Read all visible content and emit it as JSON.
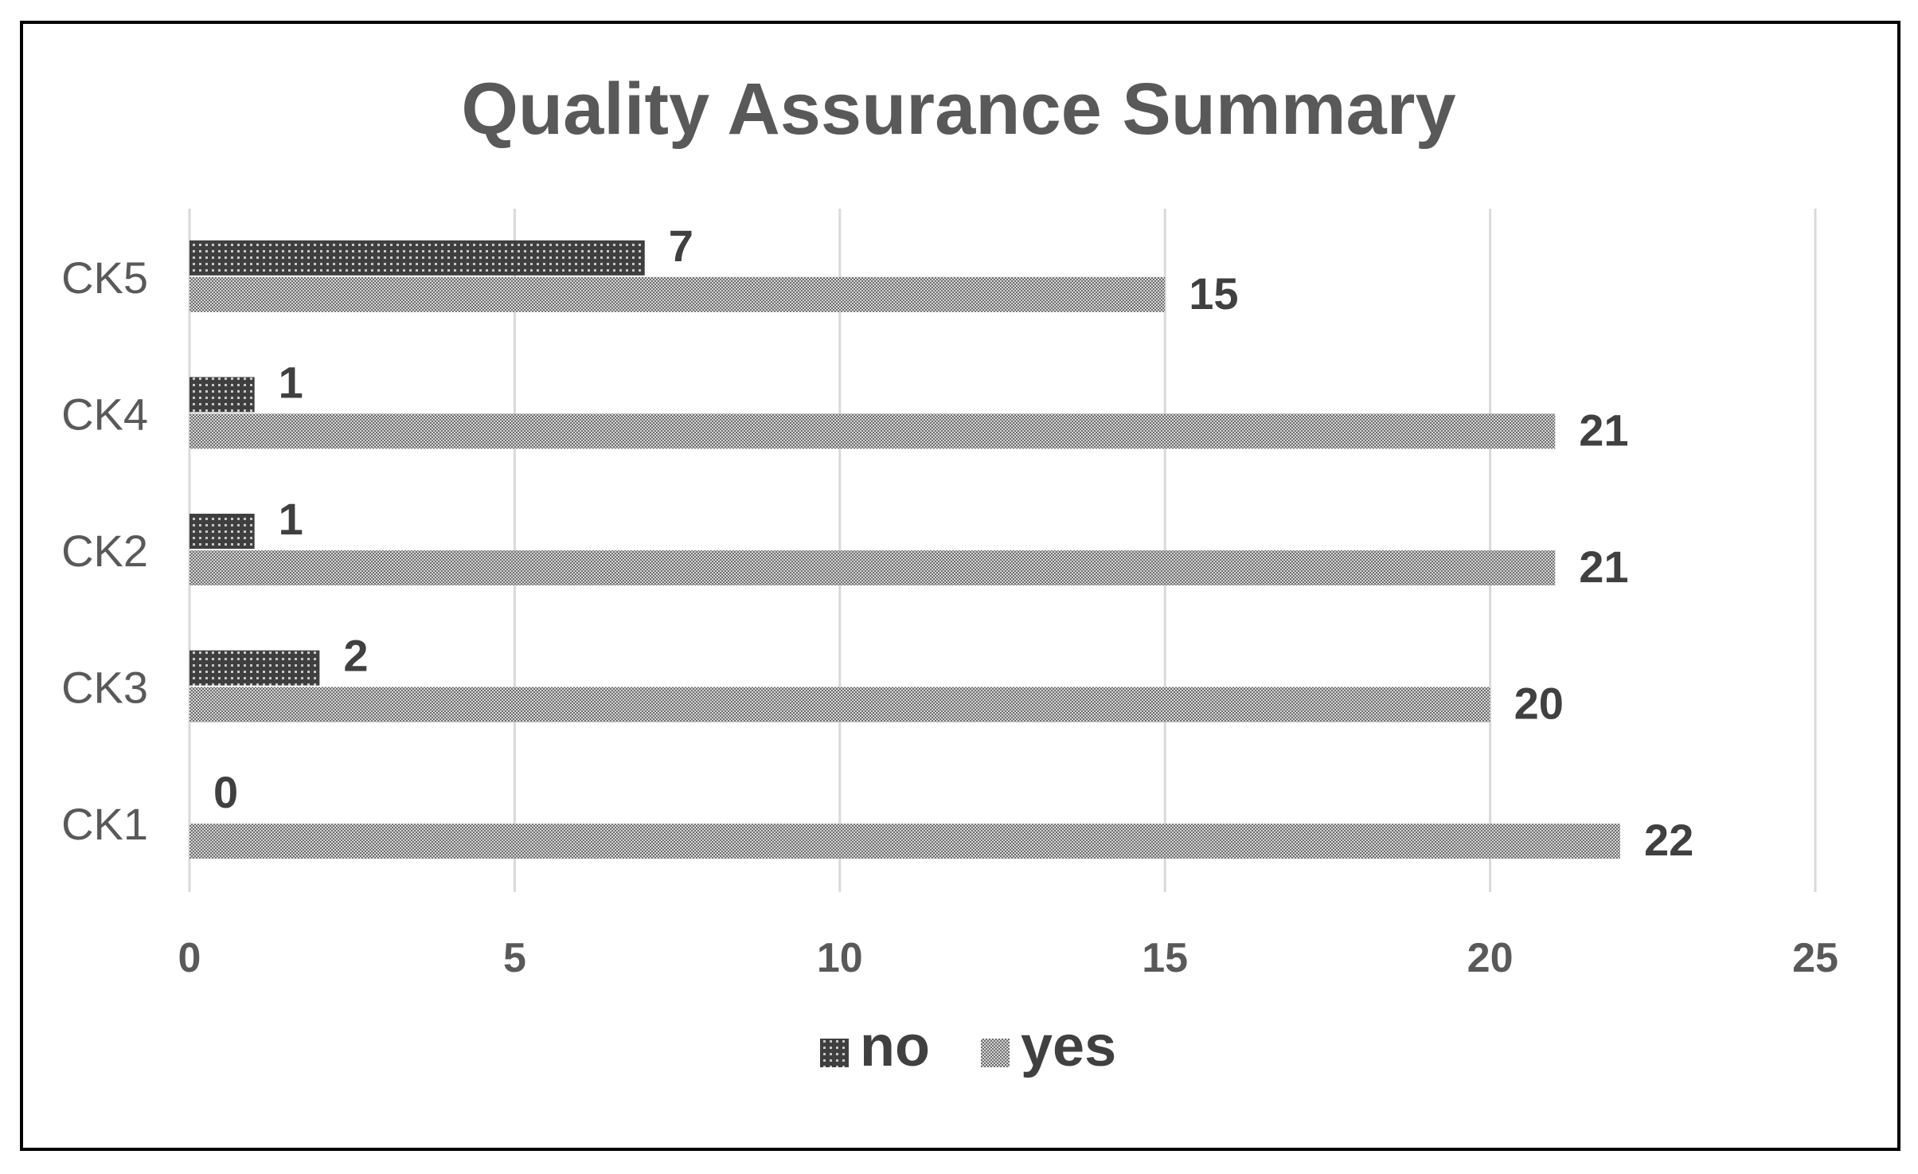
{
  "chart_data": {
    "type": "bar",
    "orientation": "horizontal",
    "title": "Quality Assurance Summary",
    "xlabel": "",
    "ylabel": "",
    "categories": [
      "CK5",
      "CK4",
      "CK2",
      "CK3",
      "CK1"
    ],
    "series": [
      {
        "name": "no",
        "values": [
          7,
          1,
          1,
          2,
          0
        ],
        "color": "#4a4a4a",
        "pattern": "dotted-dark"
      },
      {
        "name": "yes",
        "values": [
          15,
          21,
          21,
          20,
          22
        ],
        "color": "#8c8c8c",
        "pattern": "checker-light"
      }
    ],
    "xlim": [
      0,
      25
    ],
    "xticks": [
      0,
      5,
      10,
      15,
      20,
      25
    ],
    "grid": true,
    "data_labels": true,
    "legend_position": "bottom-center"
  }
}
